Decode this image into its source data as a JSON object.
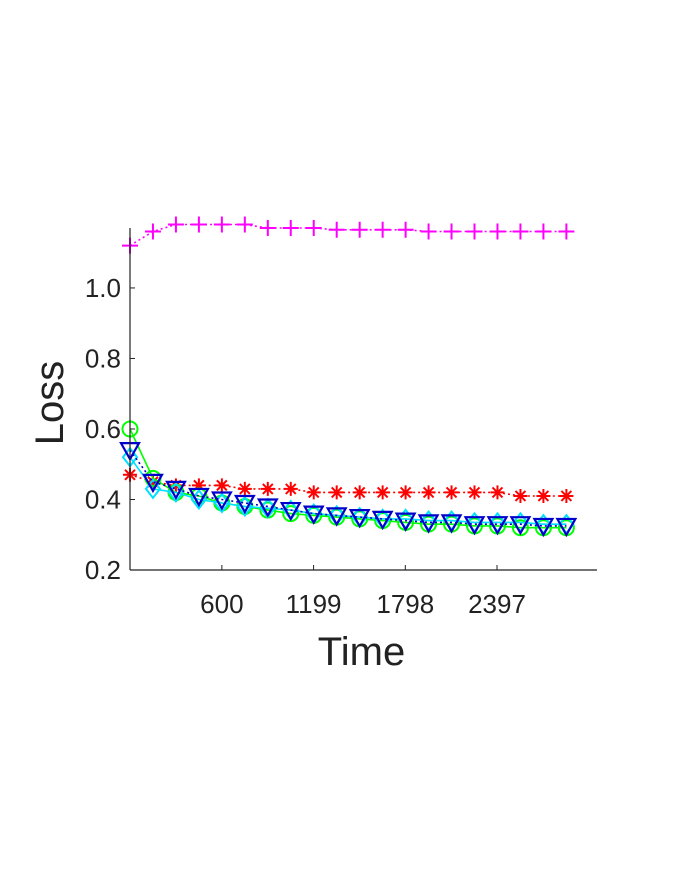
{
  "chart_data": {
    "type": "line",
    "title": "",
    "xlabel": "Time",
    "ylabel": "Loss",
    "xlim": [
      0,
      3050
    ],
    "ylim": [
      0.2,
      1.17
    ],
    "xticks": [
      600,
      1199,
      1798,
      2397
    ],
    "xtick_labels": [
      "600",
      "1199",
      "1798",
      "2397"
    ],
    "yticks": [
      0.2,
      0.4,
      0.6,
      0.8,
      1.0
    ],
    "ytick_labels": [
      "0.2",
      "0.4",
      "0.6",
      "0.8",
      "1.0"
    ],
    "grid": false,
    "legend": "none",
    "x": [
      0,
      150,
      300,
      450,
      600,
      750,
      900,
      1050,
      1200,
      1350,
      1500,
      1650,
      1800,
      1950,
      2100,
      2250,
      2400,
      2550,
      2700,
      2850
    ],
    "series": [
      {
        "color": "#ff00ff",
        "marker": "plus",
        "line": "dotted",
        "values": [
          1.12,
          1.16,
          1.18,
          1.18,
          1.18,
          1.18,
          1.17,
          1.17,
          1.17,
          1.165,
          1.165,
          1.165,
          1.165,
          1.16,
          1.16,
          1.16,
          1.16,
          1.16,
          1.16,
          1.16
        ]
      },
      {
        "color": "#ff0000",
        "marker": "star",
        "line": "dotted",
        "values": [
          0.47,
          0.45,
          0.44,
          0.44,
          0.44,
          0.43,
          0.43,
          0.43,
          0.42,
          0.42,
          0.42,
          0.42,
          0.42,
          0.42,
          0.42,
          0.42,
          0.42,
          0.41,
          0.41,
          0.41
        ]
      },
      {
        "color": "#00ff00",
        "marker": "circle",
        "line": "solid",
        "values": [
          0.6,
          0.46,
          0.42,
          0.41,
          0.39,
          0.38,
          0.37,
          0.36,
          0.355,
          0.35,
          0.345,
          0.34,
          0.335,
          0.33,
          0.33,
          0.325,
          0.325,
          0.32,
          0.32,
          0.32
        ]
      },
      {
        "color": "#00e0ff",
        "marker": "diamond",
        "line": "solid",
        "values": [
          0.52,
          0.43,
          0.42,
          0.4,
          0.39,
          0.38,
          0.375,
          0.37,
          0.36,
          0.355,
          0.35,
          0.345,
          0.345,
          0.34,
          0.34,
          0.335,
          0.335,
          0.335,
          0.33,
          0.33
        ]
      },
      {
        "color": "#0000cc",
        "marker": "triangle-down",
        "line": "dotted",
        "values": [
          0.54,
          0.45,
          0.43,
          0.41,
          0.4,
          0.39,
          0.38,
          0.37,
          0.36,
          0.355,
          0.35,
          0.345,
          0.34,
          0.335,
          0.335,
          0.33,
          0.33,
          0.33,
          0.325,
          0.325
        ]
      }
    ]
  }
}
